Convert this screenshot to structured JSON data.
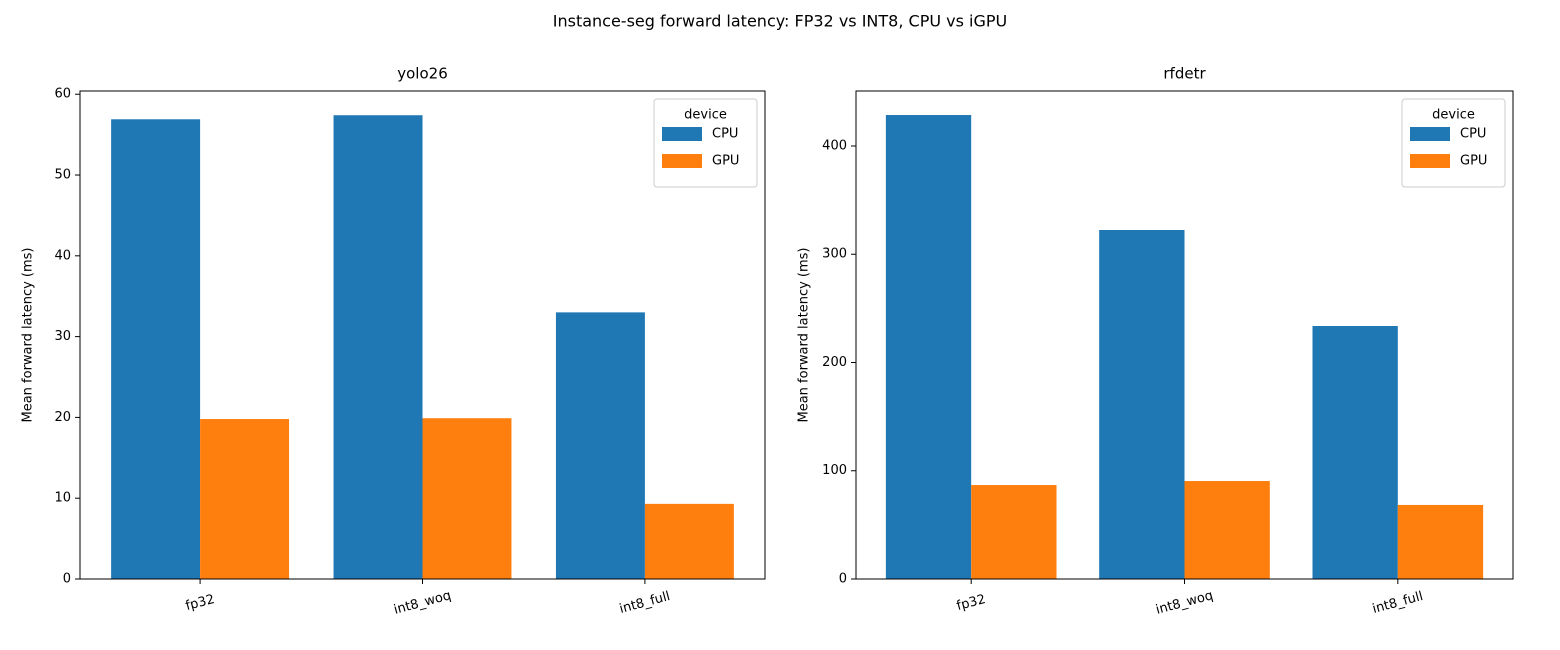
{
  "title": "Instance-seg forward latency: FP32 vs INT8, CPU vs iGPU",
  "chart_data": [
    {
      "type": "bar",
      "title": "yolo26",
      "ylabel": "Mean forward latency (ms)",
      "categories": [
        "fp32",
        "int8_woq",
        "int8_full"
      ],
      "series": [
        {
          "name": "CPU",
          "color": "#1f77b4",
          "values": [
            56.9,
            57.4,
            33.0
          ]
        },
        {
          "name": "GPU",
          "color": "#ff7f0e",
          "values": [
            19.8,
            19.9,
            9.3
          ]
        }
      ],
      "ylim": [
        0,
        60.4
      ],
      "yticks": [
        0,
        10,
        20,
        30,
        40,
        50,
        60
      ],
      "legend_title": "device",
      "legend": "upper right"
    },
    {
      "type": "bar",
      "title": "rfdetr",
      "ylabel": "Mean forward latency (ms)",
      "categories": [
        "fp32",
        "int8_woq",
        "int8_full"
      ],
      "series": [
        {
          "name": "CPU",
          "color": "#1f77b4",
          "values": [
            428.6,
            322.4,
            233.7
          ]
        },
        {
          "name": "GPU",
          "color": "#ff7f0e",
          "values": [
            86.8,
            90.5,
            68.4
          ]
        }
      ],
      "ylim": [
        0,
        450.8
      ],
      "yticks": [
        0,
        100,
        200,
        300,
        400
      ],
      "legend_title": "device",
      "legend": "upper right"
    }
  ]
}
